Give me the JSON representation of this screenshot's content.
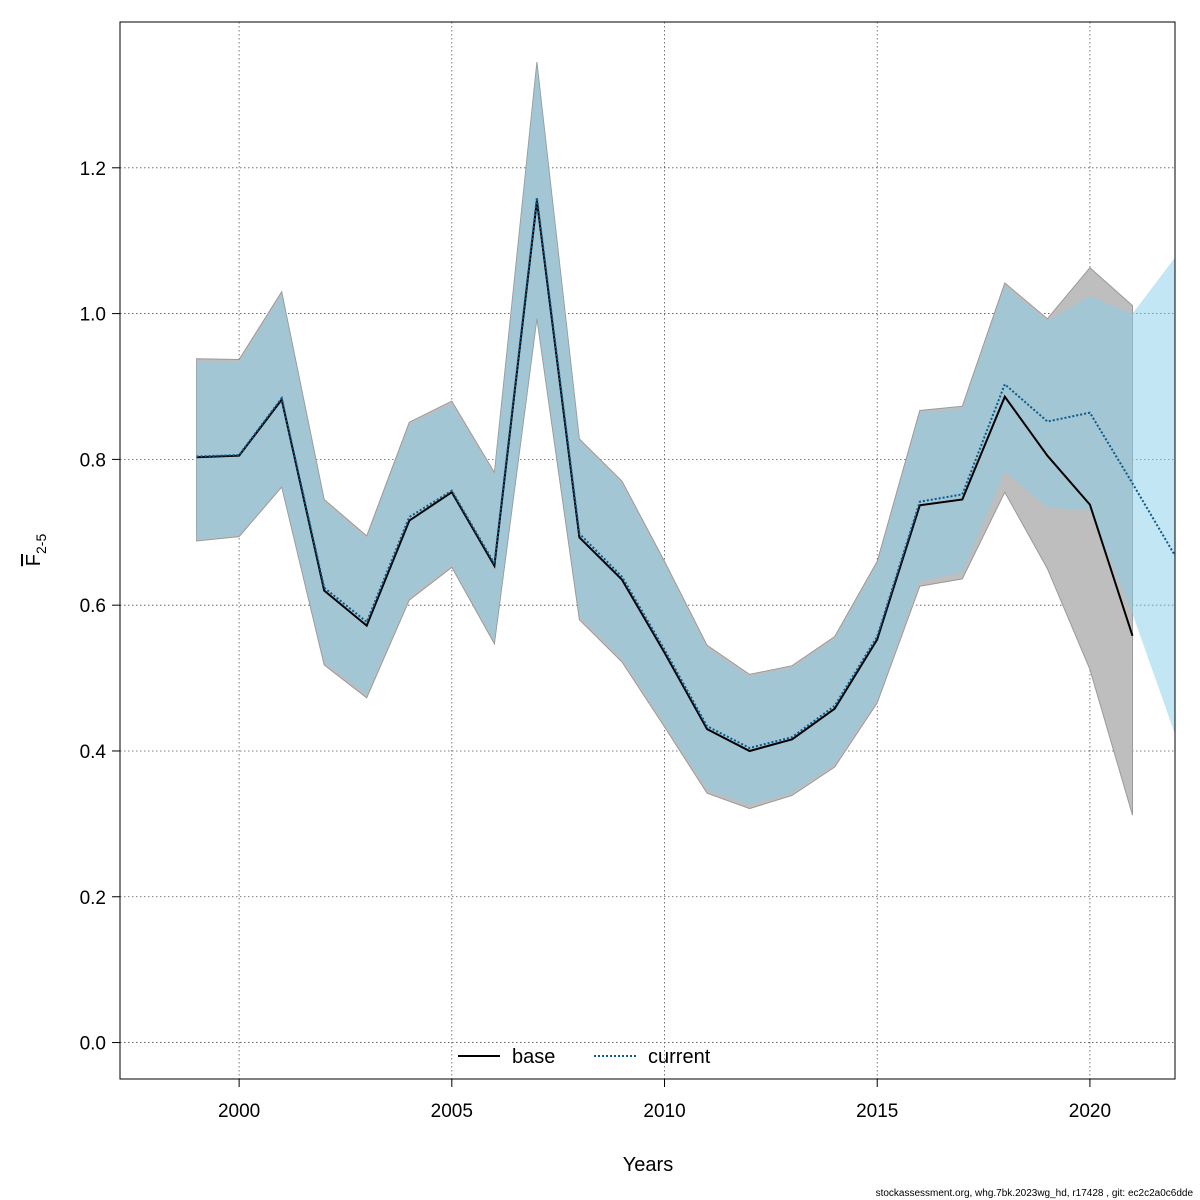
{
  "chart_data": {
    "type": "line",
    "title": "",
    "xlabel": "Years",
    "ylabel_main": "F",
    "ylabel_sub": "2-5",
    "xlim": [
      1997.2,
      2022
    ],
    "ylim": [
      -0.05,
      1.4
    ],
    "xticks": [
      2000,
      2005,
      2010,
      2015,
      2020
    ],
    "yticks": [
      0.0,
      0.2,
      0.4,
      0.6,
      0.8,
      1.0,
      1.2
    ],
    "ytick_labels": [
      "0.0",
      "0.2",
      "0.4",
      "0.6",
      "0.8",
      "1.0",
      "1.2"
    ],
    "grid": true,
    "legend_position": "bottom",
    "series": [
      {
        "name": "base",
        "linestyle": "solid",
        "color": "#000000",
        "band_color": "#bebebe",
        "x": [
          1999,
          2000,
          2001,
          2002,
          2003,
          2004,
          2005,
          2006,
          2007,
          2008,
          2009,
          2010,
          2011,
          2012,
          2013,
          2014,
          2015,
          2016,
          2017,
          2018,
          2019,
          2020,
          2021
        ],
        "values": [
          0.803,
          0.805,
          0.882,
          0.62,
          0.572,
          0.716,
          0.755,
          0.654,
          1.155,
          0.693,
          0.635,
          0.535,
          0.43,
          0.4,
          0.416,
          0.458,
          0.553,
          0.737,
          0.745,
          0.886,
          0.805,
          0.738,
          0.558
        ],
        "lower": [
          0.688,
          0.694,
          0.762,
          0.518,
          0.473,
          0.607,
          0.652,
          0.547,
          0.993,
          0.58,
          0.522,
          0.433,
          0.342,
          0.321,
          0.339,
          0.378,
          0.466,
          0.626,
          0.636,
          0.755,
          0.65,
          0.512,
          0.312
        ],
        "upper": [
          0.938,
          0.937,
          1.03,
          0.745,
          0.695,
          0.851,
          0.88,
          0.782,
          1.345,
          0.828,
          0.77,
          0.66,
          0.545,
          0.505,
          0.517,
          0.557,
          0.66,
          0.867,
          0.873,
          1.042,
          0.993,
          1.063,
          1.011
        ]
      },
      {
        "name": "current",
        "linestyle": "dotted",
        "color": "#0a5a8a",
        "band_color": "#87ceeb",
        "x": [
          1999,
          2000,
          2001,
          2002,
          2003,
          2004,
          2005,
          2006,
          2007,
          2008,
          2009,
          2010,
          2011,
          2012,
          2013,
          2014,
          2015,
          2016,
          2017,
          2018,
          2019,
          2020,
          2021,
          2022
        ],
        "values": [
          0.804,
          0.806,
          0.884,
          0.624,
          0.577,
          0.721,
          0.757,
          0.657,
          1.159,
          0.698,
          0.639,
          0.539,
          0.434,
          0.404,
          0.419,
          0.462,
          0.557,
          0.742,
          0.752,
          0.903,
          0.852,
          0.864,
          0.767,
          0.668
        ],
        "lower": [
          0.69,
          0.696,
          0.764,
          0.521,
          0.478,
          0.611,
          0.655,
          0.55,
          0.996,
          0.585,
          0.527,
          0.437,
          0.347,
          0.326,
          0.343,
          0.382,
          0.47,
          0.633,
          0.645,
          0.783,
          0.734,
          0.73,
          0.588,
          0.423
        ],
        "upper": [
          0.935,
          0.933,
          1.027,
          0.742,
          0.692,
          0.848,
          0.876,
          0.779,
          1.342,
          0.825,
          0.767,
          0.657,
          0.541,
          0.502,
          0.514,
          0.554,
          0.657,
          0.864,
          0.87,
          1.038,
          0.99,
          1.024,
          1.0,
          1.077
        ]
      }
    ]
  },
  "legend": {
    "items": [
      {
        "label": "base"
      },
      {
        "label": "current"
      }
    ]
  },
  "footer": {
    "text": "stockassessment.org, whg.7bk.2023wg_hd, r17428 , git: ec2c2a0c6dde"
  }
}
